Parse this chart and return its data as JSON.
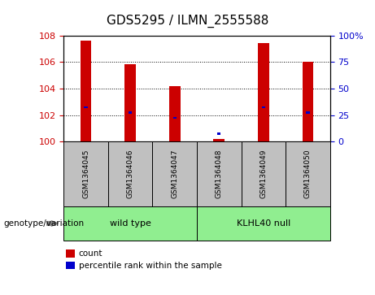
{
  "title": "GDS5295 / ILMN_2555588",
  "samples": [
    "GSM1364045",
    "GSM1364046",
    "GSM1364047",
    "GSM1364048",
    "GSM1364049",
    "GSM1364050"
  ],
  "counts": [
    107.6,
    105.8,
    104.15,
    100.2,
    107.4,
    106.0
  ],
  "percentile_ranks_pct": [
    32.5,
    27.5,
    22.5,
    7.5,
    32.5,
    27.5
  ],
  "ylim_left": [
    100,
    108
  ],
  "ylim_right": [
    0,
    100
  ],
  "yticks_left": [
    100,
    102,
    104,
    106,
    108
  ],
  "yticks_right": [
    0,
    25,
    50,
    75,
    100
  ],
  "bar_color": "#CC0000",
  "percentile_color": "#0000CC",
  "label_area_color": "#C0C0C0",
  "group_area_color": "#90EE90",
  "tick_color_left": "#CC0000",
  "tick_color_right": "#0000CC",
  "groups": [
    {
      "label": "wild type",
      "start": 0,
      "end": 3
    },
    {
      "label": "KLHL40 null",
      "start": 3,
      "end": 6
    }
  ],
  "legend_items": [
    {
      "label": "count",
      "color": "#CC0000"
    },
    {
      "label": "percentile rank within the sample",
      "color": "#0000CC"
    }
  ]
}
